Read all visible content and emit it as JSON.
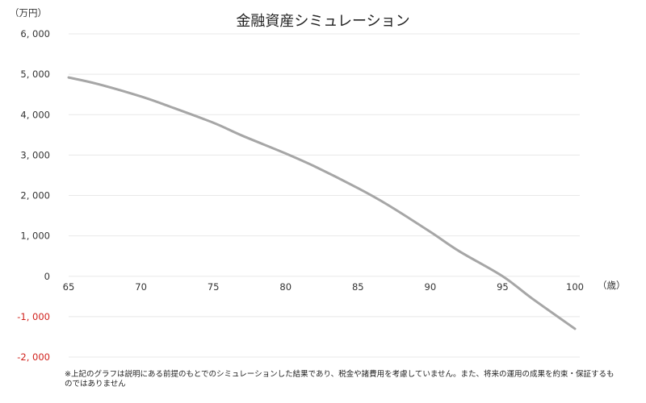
{
  "colors": {
    "line": "#a6a6a6",
    "grid": "#e8e8e8",
    "negative_label": "#d0201b",
    "text": "#333333"
  },
  "chart_data": {
    "type": "line",
    "title": "金融資産シミュレーション",
    "y_unit_label": "（万円）",
    "x_unit_label": "（歳）",
    "xlim": [
      65,
      100
    ],
    "ylim": [
      -2000,
      6000
    ],
    "x_ticks": [
      65,
      70,
      75,
      80,
      85,
      90,
      95,
      100
    ],
    "x_tick_labels": [
      "65",
      "70",
      "75",
      "80",
      "85",
      "90",
      "95",
      "100"
    ],
    "y_ticks": [
      6000,
      5000,
      4000,
      3000,
      2000,
      1000,
      0,
      -1000,
      -2000
    ],
    "y_tick_labels": [
      "6, 000",
      "5, 000",
      "4, 000",
      "3, 000",
      "2, 000",
      "1, 000",
      "0",
      "-1, 000",
      "-2, 000"
    ],
    "grid": true,
    "legend": "none",
    "series": [
      {
        "x": [
          65,
          67,
          70,
          72,
          75,
          77,
          80,
          82,
          85,
          87,
          90,
          92,
          95,
          97,
          100
        ],
        "y": [
          4920,
          4760,
          4450,
          4200,
          3800,
          3480,
          3040,
          2720,
          2180,
          1780,
          1100,
          620,
          0,
          -540,
          -1300
        ]
      }
    ]
  },
  "footnote": "※上記のグラフは説明にある前提のもとでのシミュレーションした結果であり、税金や諸費用を考慮していません。また、将来の運用の成果を約束・保証するものではありません"
}
